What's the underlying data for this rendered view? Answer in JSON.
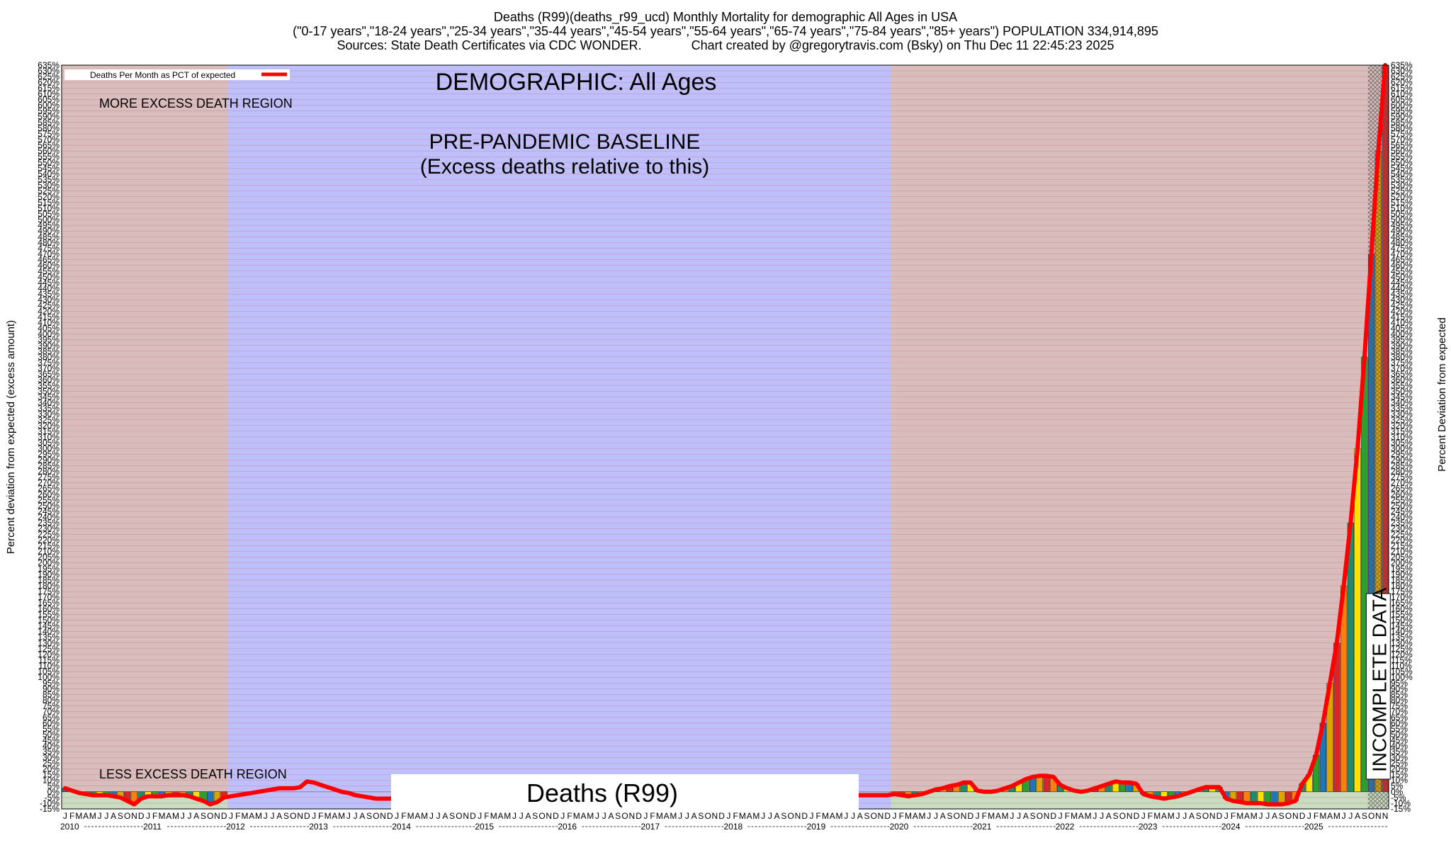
{
  "header": {
    "title_line1": "Deaths (R99)(deaths_r99_ucd) Monthly Mortality for demographic All Ages in USA",
    "title_line2": "(\"0-17 years\",\"18-24 years\",\"25-34 years\",\"35-44 years\",\"45-54 years\",\"55-64 years\",\"65-74 years\",\"75-84 years\",\"85+ years\") POPULATION 334,914,895",
    "title_line3": "Sources: State Death Certificates via CDC WONDER.              Chart created by @gregorytravis.com (Bsky) on Thu Dec 11 22:45:23 2025"
  },
  "annotations": {
    "demographic": "DEMOGRAPHIC: All Ages",
    "baseline_line1": "PRE-PANDEMIC BASELINE",
    "baseline_line2": "(Excess deaths relative to this)",
    "more_region": "MORE EXCESS DEATH REGION",
    "less_region": "LESS EXCESS DEATH REGION",
    "incomplete": "INCOMPLETE DATA",
    "watermark": "Deaths (R99)"
  },
  "legend": {
    "label": "Deaths Per Month as PCT of expected",
    "placement": "top-left",
    "line_color": "#ff0000"
  },
  "colors": {
    "excess_region": "#d9bdbd",
    "baseline_region": "#bfbffc",
    "below_zero_region": "#c9dcc0",
    "incomplete_hatch": "#8a8a8a",
    "main_line": "#ff0000",
    "bar_palette": [
      "#1f77b4",
      "#ff7f0e",
      "#2ca02c",
      "#d62728",
      "#ffe000",
      "#dba400",
      "#228b6e"
    ]
  },
  "chart_data": {
    "type": "bar",
    "title": "Deaths (R99)(deaths_r99_ucd) Monthly Mortality for demographic All Ages in USA",
    "ylabel_left": "Percent deviation from expected (excess amount)",
    "ylabel_right": "Percent Deviation from expected",
    "ylim": [
      -15,
      635
    ],
    "ytick_step": 5,
    "grid": true,
    "month_letters": [
      "J",
      "F",
      "M",
      "A",
      "M",
      "J",
      "J",
      "A",
      "S",
      "O",
      "N",
      "D"
    ],
    "years": [
      "2010",
      "2011",
      "2012",
      "2013",
      "2014",
      "2015",
      "2016",
      "2017",
      "2018",
      "2019",
      "2020",
      "2021",
      "2022",
      "2023",
      "2024",
      "2025"
    ],
    "last_month_letter": "N",
    "baseline_period": {
      "start_year": 2012,
      "end_year": 2019
    },
    "incomplete_months": 3,
    "values": [
      3,
      1,
      -1,
      -2,
      -3,
      -3,
      -3,
      -4,
      -5,
      -8,
      -11,
      -6,
      -4,
      -4,
      -4,
      -3,
      -3,
      -3,
      -4,
      -6,
      -8,
      -11,
      -9,
      -5,
      -4,
      -3,
      -2,
      -1,
      0,
      1,
      2,
      3,
      3,
      3,
      4,
      9,
      8,
      6,
      4,
      2,
      0,
      -1,
      -3,
      -4,
      -5,
      -6,
      -6,
      -6,
      -5,
      -5,
      -4,
      -4,
      -4,
      -4,
      -4,
      -4,
      -4,
      -4,
      -4,
      -4,
      -4,
      -4,
      -4,
      -4,
      -4,
      -4,
      -4,
      -4,
      -4,
      -4,
      -4,
      -4,
      -4,
      -4,
      -4,
      -4,
      -4,
      -4,
      -4,
      -4,
      -4,
      -4,
      -4,
      -4,
      -4,
      -4,
      -4,
      -4,
      -4,
      -4,
      -4,
      -4,
      -4,
      -4,
      -4,
      -4,
      -4,
      -4,
      -4,
      -4,
      -4,
      -4,
      -4,
      -4,
      -4,
      -4,
      -4,
      -4,
      -3,
      -3,
      -3,
      -3,
      -3,
      -3,
      -3,
      -3,
      -3,
      -3,
      -3,
      -3,
      -2,
      -3,
      -4,
      -3,
      -2,
      0,
      2,
      3,
      5,
      6,
      8,
      8,
      1,
      0,
      0,
      1,
      3,
      5,
      8,
      11,
      13,
      14,
      14,
      13,
      6,
      3,
      1,
      0,
      1,
      3,
      5,
      7,
      9,
      8,
      8,
      7,
      -2,
      -4,
      -5,
      -6,
      -5,
      -4,
      -2,
      0,
      2,
      4,
      4,
      4,
      -6,
      -8,
      -9,
      -10,
      -10,
      -10,
      -11,
      -11,
      -11,
      -10,
      -8,
      7,
      15,
      32,
      60,
      95,
      130,
      180,
      235,
      300,
      380,
      470,
      560,
      635
    ]
  }
}
